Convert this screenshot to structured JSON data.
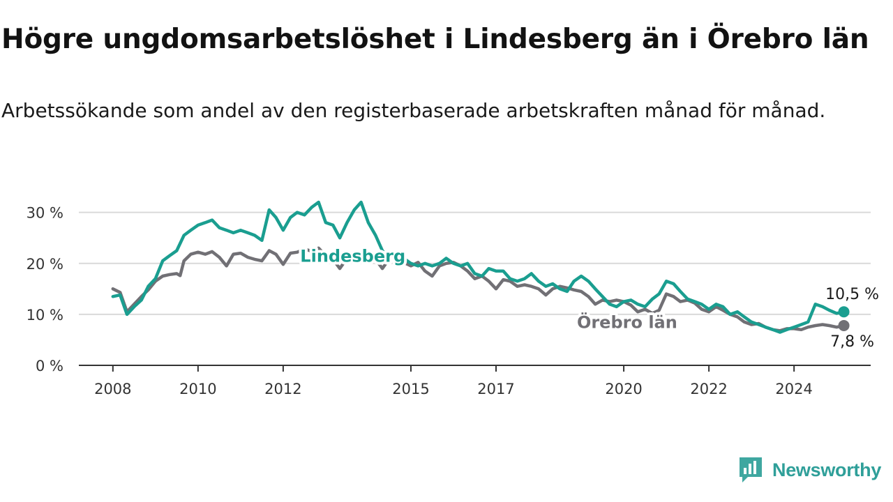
{
  "header": {
    "title": "Högre ungdomsarbetslöshet i Lindesberg än i Örebro län",
    "subtitle": "Arbetssökande som andel av den registerbaserade arbetskraften månad för månad."
  },
  "brand": {
    "name": "Newsworthy",
    "icon": "newsworthy-chart-icon",
    "color": "#2f9f99"
  },
  "chart_data": {
    "type": "line",
    "y_tick_labels": [
      "0 %",
      "10 %",
      "20 %",
      "30 %"
    ],
    "y_ticks": [
      0,
      10,
      20,
      30
    ],
    "ylim": [
      0,
      32
    ],
    "x_tick_labels": [
      "2008",
      "2010",
      "2012",
      "2015",
      "2017",
      "2020",
      "2022",
      "2024"
    ],
    "x_ticks": [
      2008,
      2010,
      2012,
      2015,
      2017,
      2020,
      2022,
      2024
    ],
    "xlim": [
      2007.2,
      2025.8
    ],
    "grid": true,
    "series": [
      {
        "name": "Örebro län",
        "color": "#717075",
        "end_label": "7,8 %",
        "points": [
          [
            2008.0,
            15.0
          ],
          [
            2008.17,
            14.3
          ],
          [
            2008.33,
            10.5
          ],
          [
            2008.5,
            12.0
          ],
          [
            2008.67,
            13.5
          ],
          [
            2008.83,
            14.8
          ],
          [
            2009.0,
            16.5
          ],
          [
            2009.17,
            17.5
          ],
          [
            2009.33,
            17.8
          ],
          [
            2009.5,
            18.0
          ],
          [
            2009.58,
            17.6
          ],
          [
            2009.67,
            20.5
          ],
          [
            2009.83,
            21.8
          ],
          [
            2010.0,
            22.2
          ],
          [
            2010.17,
            21.8
          ],
          [
            2010.33,
            22.3
          ],
          [
            2010.5,
            21.2
          ],
          [
            2010.67,
            19.5
          ],
          [
            2010.83,
            21.8
          ],
          [
            2011.0,
            22.0
          ],
          [
            2011.17,
            21.2
          ],
          [
            2011.33,
            20.8
          ],
          [
            2011.5,
            20.5
          ],
          [
            2011.67,
            22.5
          ],
          [
            2011.83,
            21.8
          ],
          [
            2012.0,
            19.8
          ],
          [
            2012.17,
            22.0
          ],
          [
            2012.33,
            22.2
          ],
          [
            2012.5,
            22.8
          ],
          [
            2012.67,
            22.4
          ],
          [
            2012.83,
            23.0
          ],
          [
            2013.0,
            21.5
          ],
          [
            2013.17,
            20.8
          ],
          [
            2013.33,
            19.0
          ],
          [
            2013.5,
            21.0
          ],
          [
            2013.67,
            21.5
          ],
          [
            2013.83,
            21.2
          ],
          [
            2014.0,
            20.5
          ],
          [
            2014.17,
            20.8
          ],
          [
            2014.33,
            19.0
          ],
          [
            2014.5,
            21.0
          ],
          [
            2014.67,
            20.8
          ],
          [
            2014.83,
            20.2
          ],
          [
            2015.0,
            19.5
          ],
          [
            2015.17,
            20.2
          ],
          [
            2015.33,
            18.5
          ],
          [
            2015.5,
            17.5
          ],
          [
            2015.67,
            19.5
          ],
          [
            2015.83,
            20.0
          ],
          [
            2016.0,
            20.2
          ],
          [
            2016.17,
            19.5
          ],
          [
            2016.33,
            18.5
          ],
          [
            2016.5,
            17.0
          ],
          [
            2016.67,
            17.5
          ],
          [
            2016.83,
            16.5
          ],
          [
            2017.0,
            15.0
          ],
          [
            2017.17,
            16.8
          ],
          [
            2017.33,
            16.5
          ],
          [
            2017.5,
            15.5
          ],
          [
            2017.67,
            15.8
          ],
          [
            2017.83,
            15.5
          ],
          [
            2018.0,
            15.0
          ],
          [
            2018.17,
            13.8
          ],
          [
            2018.33,
            15.0
          ],
          [
            2018.5,
            15.5
          ],
          [
            2018.67,
            15.2
          ],
          [
            2018.83,
            14.8
          ],
          [
            2019.0,
            14.5
          ],
          [
            2019.17,
            13.5
          ],
          [
            2019.33,
            12.0
          ],
          [
            2019.5,
            12.8
          ],
          [
            2019.67,
            12.5
          ],
          [
            2019.83,
            12.8
          ],
          [
            2020.0,
            12.5
          ],
          [
            2020.17,
            11.8
          ],
          [
            2020.33,
            10.5
          ],
          [
            2020.5,
            11.0
          ],
          [
            2020.67,
            10.2
          ],
          [
            2020.83,
            10.8
          ],
          [
            2021.0,
            14.0
          ],
          [
            2021.17,
            13.5
          ],
          [
            2021.33,
            12.5
          ],
          [
            2021.5,
            12.8
          ],
          [
            2021.67,
            12.2
          ],
          [
            2021.83,
            11.0
          ],
          [
            2022.0,
            10.5
          ],
          [
            2022.17,
            11.5
          ],
          [
            2022.33,
            10.8
          ],
          [
            2022.5,
            10.0
          ],
          [
            2022.67,
            9.5
          ],
          [
            2022.83,
            8.5
          ],
          [
            2023.0,
            8.0
          ],
          [
            2023.17,
            8.2
          ],
          [
            2023.33,
            7.5
          ],
          [
            2023.5,
            7.0
          ],
          [
            2023.67,
            6.8
          ],
          [
            2023.83,
            7.2
          ],
          [
            2024.0,
            7.2
          ],
          [
            2024.17,
            7.0
          ],
          [
            2024.33,
            7.5
          ],
          [
            2024.5,
            7.8
          ],
          [
            2024.67,
            8.0
          ],
          [
            2024.83,
            7.8
          ],
          [
            2025.0,
            7.5
          ],
          [
            2025.17,
            7.8
          ]
        ]
      },
      {
        "name": "Lindesberg",
        "color": "#1a9e90",
        "end_label": "10,5 %",
        "points": [
          [
            2008.0,
            13.5
          ],
          [
            2008.17,
            13.8
          ],
          [
            2008.33,
            10.0
          ],
          [
            2008.5,
            11.5
          ],
          [
            2008.67,
            12.8
          ],
          [
            2008.83,
            15.5
          ],
          [
            2009.0,
            17.0
          ],
          [
            2009.17,
            20.5
          ],
          [
            2009.33,
            21.5
          ],
          [
            2009.5,
            22.5
          ],
          [
            2009.67,
            25.5
          ],
          [
            2009.83,
            26.5
          ],
          [
            2010.0,
            27.5
          ],
          [
            2010.17,
            28.0
          ],
          [
            2010.33,
            28.5
          ],
          [
            2010.5,
            27.0
          ],
          [
            2010.67,
            26.5
          ],
          [
            2010.83,
            26.0
          ],
          [
            2011.0,
            26.5
          ],
          [
            2011.17,
            26.0
          ],
          [
            2011.33,
            25.5
          ],
          [
            2011.5,
            24.5
          ],
          [
            2011.67,
            30.5
          ],
          [
            2011.83,
            29.0
          ],
          [
            2012.0,
            26.5
          ],
          [
            2012.17,
            29.0
          ],
          [
            2012.33,
            30.0
          ],
          [
            2012.5,
            29.5
          ],
          [
            2012.67,
            31.0
          ],
          [
            2012.83,
            32.0
          ],
          [
            2013.0,
            28.0
          ],
          [
            2013.17,
            27.5
          ],
          [
            2013.33,
            25.0
          ],
          [
            2013.5,
            28.0
          ],
          [
            2013.67,
            30.5
          ],
          [
            2013.83,
            32.0
          ],
          [
            2014.0,
            28.0
          ],
          [
            2014.17,
            25.5
          ],
          [
            2014.33,
            22.5
          ],
          [
            2014.5,
            21.0
          ],
          [
            2014.67,
            22.0
          ],
          [
            2014.83,
            21.0
          ],
          [
            2015.0,
            20.0
          ],
          [
            2015.17,
            19.5
          ],
          [
            2015.33,
            20.0
          ],
          [
            2015.5,
            19.5
          ],
          [
            2015.67,
            20.0
          ],
          [
            2015.83,
            21.0
          ],
          [
            2016.0,
            20.0
          ],
          [
            2016.17,
            19.5
          ],
          [
            2016.33,
            20.0
          ],
          [
            2016.5,
            18.0
          ],
          [
            2016.67,
            17.5
          ],
          [
            2016.83,
            19.0
          ],
          [
            2017.0,
            18.5
          ],
          [
            2017.17,
            18.5
          ],
          [
            2017.33,
            17.0
          ],
          [
            2017.5,
            16.5
          ],
          [
            2017.67,
            17.0
          ],
          [
            2017.83,
            18.0
          ],
          [
            2018.0,
            16.5
          ],
          [
            2018.17,
            15.5
          ],
          [
            2018.33,
            16.0
          ],
          [
            2018.5,
            15.0
          ],
          [
            2018.67,
            14.5
          ],
          [
            2018.83,
            16.5
          ],
          [
            2019.0,
            17.5
          ],
          [
            2019.17,
            16.5
          ],
          [
            2019.33,
            15.0
          ],
          [
            2019.5,
            13.5
          ],
          [
            2019.67,
            12.0
          ],
          [
            2019.83,
            11.5
          ],
          [
            2020.0,
            12.5
          ],
          [
            2020.17,
            12.8
          ],
          [
            2020.33,
            12.0
          ],
          [
            2020.5,
            11.5
          ],
          [
            2020.67,
            13.0
          ],
          [
            2020.83,
            14.0
          ],
          [
            2021.0,
            16.5
          ],
          [
            2021.17,
            16.0
          ],
          [
            2021.33,
            14.5
          ],
          [
            2021.5,
            13.0
          ],
          [
            2021.67,
            12.5
          ],
          [
            2021.83,
            12.0
          ],
          [
            2022.0,
            11.0
          ],
          [
            2022.17,
            12.0
          ],
          [
            2022.33,
            11.5
          ],
          [
            2022.5,
            10.0
          ],
          [
            2022.67,
            10.5
          ],
          [
            2022.83,
            9.5
          ],
          [
            2023.0,
            8.5
          ],
          [
            2023.17,
            8.0
          ],
          [
            2023.33,
            7.5
          ],
          [
            2023.5,
            7.0
          ],
          [
            2023.67,
            6.5
          ],
          [
            2023.83,
            7.0
          ],
          [
            2024.0,
            7.5
          ],
          [
            2024.17,
            8.0
          ],
          [
            2024.33,
            8.5
          ],
          [
            2024.5,
            12.0
          ],
          [
            2024.67,
            11.5
          ],
          [
            2024.83,
            10.8
          ],
          [
            2025.0,
            10.2
          ],
          [
            2025.17,
            10.5
          ]
        ]
      }
    ]
  }
}
